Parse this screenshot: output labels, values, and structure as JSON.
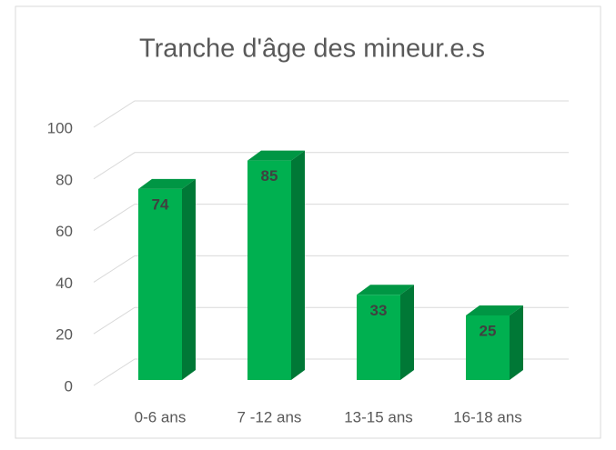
{
  "chart_data": {
    "type": "bar3d",
    "title": "Tranche d'âge des mineur.e.s",
    "categories": [
      "0-6 ans",
      "7 -12 ans",
      "13-15 ans",
      "16-18 ans"
    ],
    "values": [
      74,
      85,
      33,
      25
    ],
    "color": "#00b050",
    "ylim": [
      0,
      100
    ],
    "yticks": [
      0,
      20,
      40,
      60,
      80,
      100
    ],
    "grid": true
  }
}
